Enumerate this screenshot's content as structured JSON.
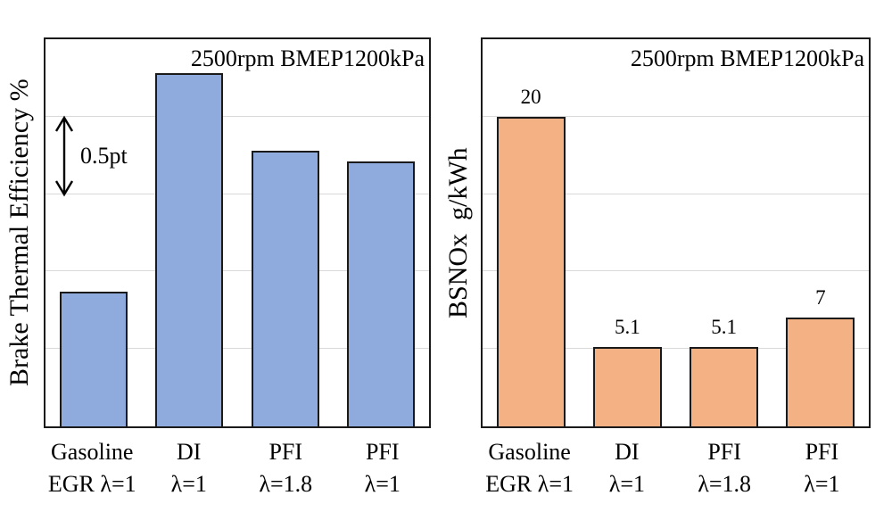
{
  "colors": {
    "bar_blue": "#8FAADC",
    "bar_orange": "#F4B183",
    "bar_border": "#1a1a1a",
    "gridline": "#d9d9d9",
    "plot_border": "#1a1a1a",
    "background": "#ffffff"
  },
  "chart_data": [
    {
      "type": "bar",
      "title": "2500rpm BMEP1200kPa",
      "ylabel": "Brake Thermal Efficiency %",
      "categories": [
        [
          "Gasoline",
          "EGR λ=1"
        ],
        [
          "DI",
          "λ=1"
        ],
        [
          "PFI",
          "λ=1.8"
        ],
        [
          "PFI",
          "λ=1"
        ]
      ],
      "values": [
        0.87,
        2.28,
        1.78,
        1.71
      ],
      "value_units": "pt (relative scale, axis unlabeled)",
      "ylim": [
        0,
        2.5
      ],
      "gridline_step": 0.5,
      "scale_annotation": "0.5pt",
      "bar_color": "#8FAADC",
      "show_value_labels": false,
      "legend": "none",
      "grid": "horizontal"
    },
    {
      "type": "bar",
      "title": "2500rpm BMEP1200kPa",
      "ylabel": "BSNOx  g/kWh",
      "categories": [
        [
          "Gasoline",
          "EGR λ=1"
        ],
        [
          "DI",
          "λ=1"
        ],
        [
          "PFI",
          "λ=1.8"
        ],
        [
          "PFI",
          "λ=1"
        ]
      ],
      "values": [
        20,
        5.1,
        5.1,
        7
      ],
      "value_labels": [
        "20",
        "5.1",
        "5.1",
        "7"
      ],
      "ylim": [
        0,
        25
      ],
      "gridline_step": 5,
      "bar_color": "#F4B183",
      "show_value_labels": true,
      "legend": "none",
      "grid": "horizontal"
    }
  ]
}
